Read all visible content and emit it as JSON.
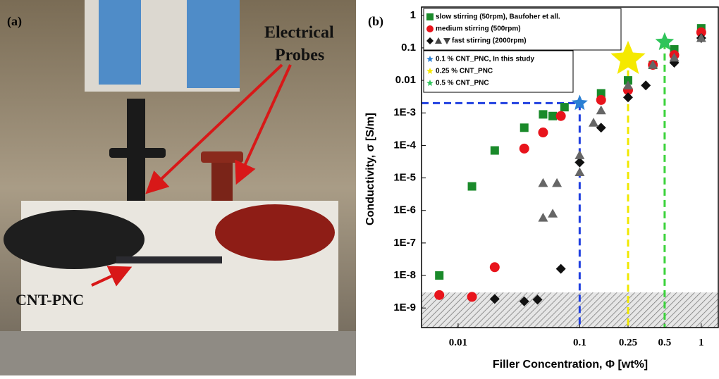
{
  "photo": {
    "panel_label": "(a)",
    "probes_label": [
      "Electrical",
      "Probes"
    ],
    "sample_label": "CNT-PNC"
  },
  "chart_data": {
    "type": "scatter",
    "panel_label": "(b)",
    "x_label": "Filler Concentration, Φ [wt%]",
    "y_label": "Conductivity, σ [S/m]",
    "xlog": true,
    "ylog": true,
    "xlim": [
      0.005,
      1.4
    ],
    "ylim": [
      2.5e-10,
      1.8
    ],
    "xticks": [
      0.01,
      0.1,
      0.25,
      0.5,
      1
    ],
    "yticks": [
      1,
      0.1,
      0.01,
      {
        "value": 0.001,
        "label": "1E-3"
      },
      {
        "value": 0.0001,
        "label": "1E-4"
      },
      {
        "value": 1e-05,
        "label": "1E-5"
      },
      {
        "value": 1e-06,
        "label": "1E-6"
      },
      {
        "value": 1e-07,
        "label": "1E-7"
      },
      {
        "value": 1e-08,
        "label": "1E-8"
      },
      {
        "value": 1e-09,
        "label": "1E-9"
      }
    ],
    "shaded_below": 3e-09,
    "series": [
      {
        "name": "slow stirring (50rpm), Baufoher et all.",
        "color": "#1a8a2a",
        "marker": "square",
        "size": 6,
        "legend": 1,
        "x": [
          0.007,
          0.013,
          0.02,
          0.035,
          0.05,
          0.06,
          0.075,
          0.15,
          0.25,
          0.4,
          0.6,
          1.0
        ],
        "values": [
          1e-08,
          5.5e-06,
          7e-05,
          0.00035,
          0.0009,
          0.0008,
          0.0015,
          0.004,
          0.01,
          0.03,
          0.09,
          0.4
        ]
      },
      {
        "name": "medium stirring (500rpm)",
        "color": "#e8141c",
        "marker": "circle",
        "size": 7,
        "legend": 1,
        "x": [
          0.007,
          0.013,
          0.02,
          0.035,
          0.05,
          0.07,
          0.15,
          0.25,
          0.4,
          0.6,
          1.0
        ],
        "values": [
          2.5e-09,
          2.2e-09,
          1.8e-08,
          8e-05,
          0.00025,
          0.0008,
          0.0025,
          0.005,
          0.03,
          0.06,
          0.3
        ]
      },
      {
        "name": "fast stirring (2000rpm)",
        "color": "#111111",
        "marker": "diamond",
        "size": 7,
        "legend": 1,
        "x": [
          0.02,
          0.035,
          0.045,
          0.07,
          0.1,
          0.15,
          0.25,
          0.35,
          0.6,
          1.0
        ],
        "values": [
          1.9e-09,
          1.6e-09,
          1.8e-09,
          1.6e-08,
          3e-05,
          0.00035,
          0.003,
          0.007,
          0.035,
          0.2
        ]
      },
      {
        "name": null,
        "color": "#666666",
        "marker": "triangle",
        "size": 7,
        "x": [
          0.05,
          0.05,
          0.065,
          0.06,
          0.1,
          0.1,
          0.13,
          0.15,
          0.25,
          0.4,
          0.6,
          1.0
        ],
        "values": [
          7e-06,
          6e-07,
          7e-06,
          8e-07,
          5e-05,
          1.5e-05,
          0.0005,
          0.0012,
          0.007,
          0.03,
          0.05,
          0.2
        ]
      },
      {
        "name": "0.1 % CNT_PNC, In this study",
        "color": "#2a7fd4",
        "marker": "star",
        "size": 12,
        "legend": 2,
        "x": [
          0.1
        ],
        "values": [
          0.002
        ]
      },
      {
        "name": "0.25 % CNT_PNC",
        "color": "#f5e900",
        "marker": "star",
        "size": 26,
        "legend": 2,
        "x": [
          0.25
        ],
        "values": [
          0.045
        ]
      },
      {
        "name": "0.5 % CNT_PNC",
        "color": "#2fc45a",
        "marker": "star",
        "size": 14,
        "legend": 2,
        "x": [
          0.5
        ],
        "values": [
          0.15
        ]
      }
    ],
    "dashed_colors": [
      "#1f3fe0",
      "#f0e800",
      "#3ad23a"
    ]
  }
}
